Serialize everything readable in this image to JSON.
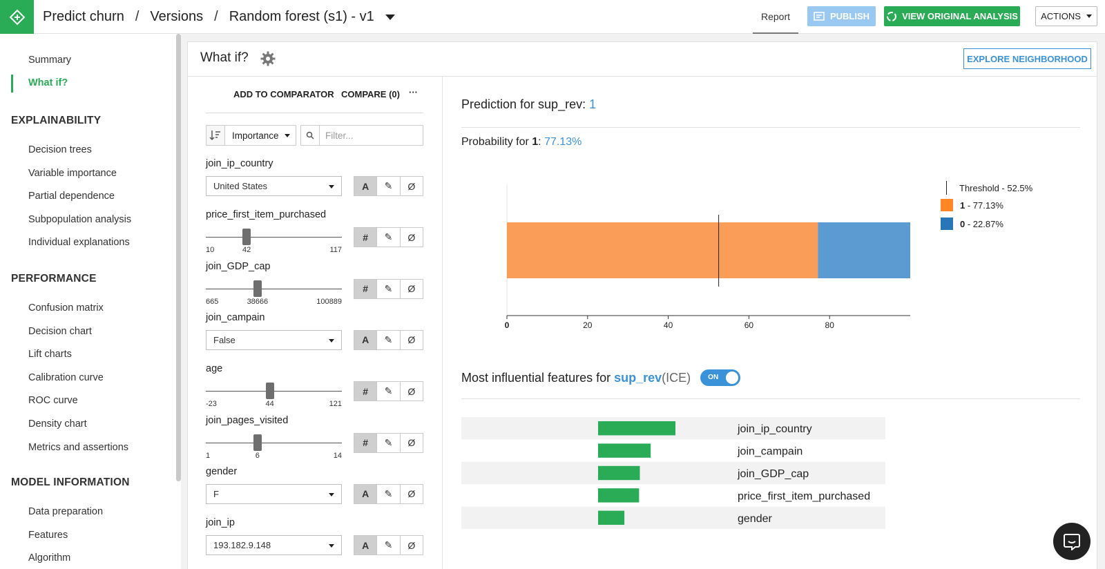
{
  "header": {
    "breadcrumbs": [
      "Predict churn",
      "Versions",
      "Random forest (s1) - v1"
    ],
    "report_tab": "Report",
    "publish_label": "PUBLISH",
    "view_original_label": "VIEW ORIGINAL ANALYSIS",
    "actions_label": "ACTIONS"
  },
  "sidebar": {
    "top_items": [
      {
        "label": "Summary",
        "active": false
      },
      {
        "label": "What if?",
        "active": true
      }
    ],
    "sections": [
      {
        "title": "EXPLAINABILITY",
        "items": [
          "Decision trees",
          "Variable importance",
          "Partial dependence",
          "Subpopulation analysis",
          "Individual explanations"
        ]
      },
      {
        "title": "PERFORMANCE",
        "items": [
          "Confusion matrix",
          "Decision chart",
          "Lift charts",
          "Calibration curve",
          "ROC curve",
          "Density chart",
          "Metrics and assertions"
        ]
      },
      {
        "title": "MODEL INFORMATION",
        "items": [
          "Data preparation",
          "Features",
          "Algorithm"
        ]
      }
    ]
  },
  "card": {
    "title": "What if?",
    "explore_label": "EXPLORE NEIGHBORHOOD"
  },
  "features_panel": {
    "add_to_comparator": "ADD TO COMPARATOR",
    "compare_label": "COMPARE (0)",
    "more_label": "···",
    "sort_value": "Importance",
    "filter_placeholder": "Filter...",
    "features": [
      {
        "name": "join_ip_country",
        "kind": "category",
        "value": "United States"
      },
      {
        "name": "price_first_item_purchased",
        "kind": "numeric",
        "min": "10",
        "value": "42",
        "max": "117",
        "fraction": 0.3
      },
      {
        "name": "join_GDP_cap",
        "kind": "numeric",
        "min": "665",
        "value": "38666",
        "max": "100889",
        "fraction": 0.38
      },
      {
        "name": "join_campain",
        "kind": "category",
        "value": "False"
      },
      {
        "name": "age",
        "kind": "numeric",
        "min": "-23",
        "value": "44",
        "max": "121",
        "fraction": 0.47
      },
      {
        "name": "join_pages_visited",
        "kind": "numeric",
        "min": "1",
        "value": "6",
        "max": "14",
        "fraction": 0.38
      },
      {
        "name": "gender",
        "kind": "category",
        "value": "F"
      },
      {
        "name": "join_ip",
        "kind": "category",
        "value": "193.182.9.148"
      }
    ],
    "ctl_labels": {
      "category": "A",
      "numeric": "#",
      "edit": "✎",
      "null": "Ø"
    }
  },
  "prediction": {
    "title_prefix": "Prediction for sup_rev: ",
    "predicted_value": "1",
    "prob_prefix": "Probability for ",
    "prob_class": "1",
    "prob_colon": ": ",
    "prob_value": "77.13%"
  },
  "chart_data": {
    "type": "bar",
    "orientation": "horizontal-stacked",
    "series": [
      {
        "name": "1 - 77.13%",
        "values": [
          77.13
        ],
        "color": "#fa9d59"
      },
      {
        "name": "0 - 22.87%",
        "values": [
          22.87
        ],
        "color": "#5b9bd1"
      }
    ],
    "threshold": {
      "label": "Threshold - 52.5%",
      "value": 52.5
    },
    "xticks": [
      "0",
      "20",
      "40",
      "60",
      "80"
    ],
    "xlim": [
      0,
      100
    ],
    "legend_position": "right",
    "legend": [
      {
        "bold": "",
        "text": "Threshold - 52.5%"
      },
      {
        "bold": "1",
        "text": " - 77.13%",
        "color": "#ff8624"
      },
      {
        "bold": "0",
        "text": " - 22.87%",
        "color": "#2777b8"
      }
    ]
  },
  "influential": {
    "title_prefix": "Most influential features for ",
    "target": "sup_rev",
    "suffix": " (ICE)",
    "toggle": "ON",
    "bar_color": "#2aab56",
    "items": [
      {
        "label": "join_ip_country",
        "value": 1.0
      },
      {
        "label": "join_campain",
        "value": 0.68
      },
      {
        "label": "join_GDP_cap",
        "value": 0.54
      },
      {
        "label": "price_first_item_purchased",
        "value": 0.53
      },
      {
        "label": "gender",
        "value": 0.34
      }
    ]
  }
}
